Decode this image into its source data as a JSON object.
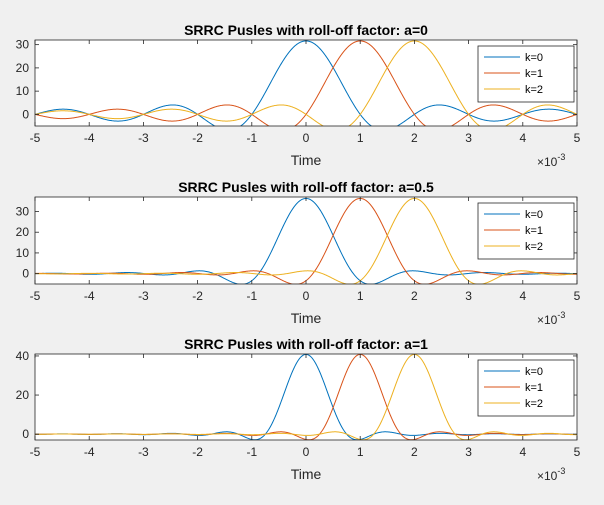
{
  "figure": {
    "background": "#f0f0f0",
    "axes_background": "#ffffff",
    "axis_color": "#262626",
    "exponent_label": "×10",
    "exponent_power": "-3"
  },
  "chart_data": [
    {
      "type": "line",
      "title": "SRRC Pusles with roll-off factor: a=0",
      "xlabel": "Time",
      "ylabel": "",
      "xlim": [
        -5,
        5
      ],
      "xticks": [
        -5,
        -4,
        -3,
        -2,
        -1,
        0,
        1,
        2,
        3,
        4,
        5
      ],
      "ylim": [
        -5,
        32
      ],
      "yticks": [
        0,
        10,
        20,
        30
      ],
      "x_scale_label": "×10^-3",
      "legend_position": "top-right",
      "rolloff": 0,
      "peak": 31.6,
      "series": [
        {
          "name": "k=0",
          "shift": 0,
          "color": "#0072BD"
        },
        {
          "name": "k=1",
          "shift": 1,
          "color": "#D95319"
        },
        {
          "name": "k=2",
          "shift": 2,
          "color": "#EDB120"
        }
      ]
    },
    {
      "type": "line",
      "title": "SRRC Pusles with roll-off factor: a=0.5",
      "xlabel": "Time",
      "ylabel": "",
      "xlim": [
        -5,
        5
      ],
      "xticks": [
        -5,
        -4,
        -3,
        -2,
        -1,
        0,
        1,
        2,
        3,
        4,
        5
      ],
      "ylim": [
        -5,
        37
      ],
      "yticks": [
        0,
        10,
        20,
        30
      ],
      "x_scale_label": "×10^-3",
      "legend_position": "top-right",
      "rolloff": 0.5,
      "peak": 36.3,
      "series": [
        {
          "name": "k=0",
          "shift": 0,
          "color": "#0072BD"
        },
        {
          "name": "k=1",
          "shift": 1,
          "color": "#D95319"
        },
        {
          "name": "k=2",
          "shift": 2,
          "color": "#EDB120"
        }
      ]
    },
    {
      "type": "line",
      "title": "SRRC Pusles with roll-off factor: a=1",
      "xlabel": "Time",
      "ylabel": "",
      "xlim": [
        -5,
        5
      ],
      "xticks": [
        -5,
        -4,
        -3,
        -2,
        -1,
        0,
        1,
        2,
        3,
        4,
        5
      ],
      "ylim": [
        -3,
        41
      ],
      "yticks": [
        0,
        20,
        40
      ],
      "x_scale_label": "×10^-3",
      "legend_position": "top-right",
      "rolloff": 1,
      "peak": 40.8,
      "series": [
        {
          "name": "k=0",
          "shift": 0,
          "color": "#0072BD"
        },
        {
          "name": "k=1",
          "shift": 1,
          "color": "#D95319"
        },
        {
          "name": "k=2",
          "shift": 2,
          "color": "#EDB120"
        }
      ]
    }
  ]
}
